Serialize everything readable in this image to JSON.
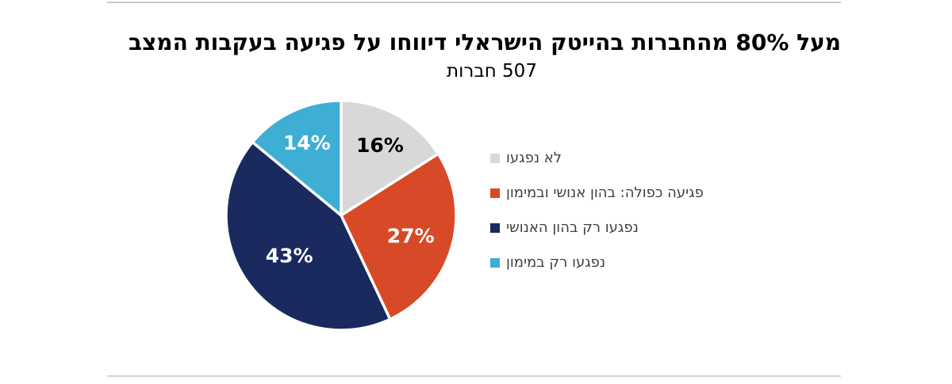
{
  "header": {
    "title": "מעל 80% מהחברות בהייטק הישראלי דיווחו על פגיעה בעקבות המצב",
    "subtitle": "507 חברות"
  },
  "chart_data": {
    "type": "pie",
    "title": "מעל 80% מהחברות בהייטק הישראלי דיווחו על פגיעה בעקבות המצב",
    "subtitle": "507 חברות",
    "start_angle_deg": 0,
    "direction": "clockwise",
    "legend_position": "right",
    "separator_color": "#ffffff",
    "slices": [
      {
        "label": "לא נפגעו",
        "value_pct": 16,
        "color": "#d8d8d8",
        "data_label": "16%",
        "data_label_color": "#000000",
        "label_r": 0.7
      },
      {
        "label": "פגיעה כפולה: בהון אנושי ובמימון",
        "value_pct": 27,
        "color": "#d84a27",
        "data_label": "27%",
        "data_label_color": "#ffffff",
        "label_r": 0.63
      },
      {
        "label": "נפגעו רק בהון האנושי",
        "value_pct": 43,
        "color": "#1a2a5e",
        "data_label": "43%",
        "data_label_color": "#ffffff",
        "label_r": 0.57
      },
      {
        "label": "נפגעו רק במימון",
        "value_pct": 14,
        "color": "#3fAED4",
        "data_label": "14%",
        "data_label_color": "#ffffff",
        "label_r": 0.7
      }
    ]
  }
}
